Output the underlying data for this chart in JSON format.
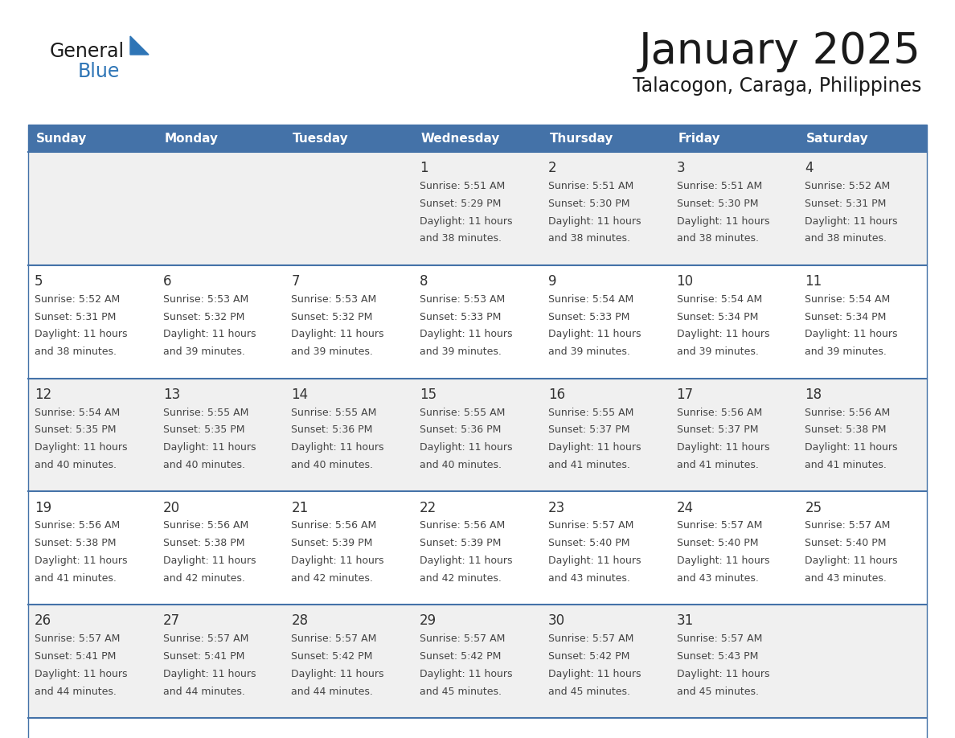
{
  "title": "January 2025",
  "subtitle": "Talacogon, Caraga, Philippines",
  "days_of_week": [
    "Sunday",
    "Monday",
    "Tuesday",
    "Wednesday",
    "Thursday",
    "Friday",
    "Saturday"
  ],
  "header_bg": "#4472a8",
  "header_text": "#ffffff",
  "cell_bg_light": "#f0f0f0",
  "cell_bg_white": "#ffffff",
  "row_line_color": "#4472a8",
  "text_color": "#333333",
  "title_color": "#1a1a1a",
  "subtitle_color": "#1a1a1a",
  "info_text_color": "#444444",
  "blue_color": "#2e75b6",
  "logo_general_color": "#1a1a1a",
  "calendar_data": [
    [
      null,
      null,
      null,
      {
        "day": 1,
        "sunrise": "5:51 AM",
        "sunset": "5:29 PM",
        "daylight": "11 hours",
        "daylight2": "and 38 minutes."
      },
      {
        "day": 2,
        "sunrise": "5:51 AM",
        "sunset": "5:30 PM",
        "daylight": "11 hours",
        "daylight2": "and 38 minutes."
      },
      {
        "day": 3,
        "sunrise": "5:51 AM",
        "sunset": "5:30 PM",
        "daylight": "11 hours",
        "daylight2": "and 38 minutes."
      },
      {
        "day": 4,
        "sunrise": "5:52 AM",
        "sunset": "5:31 PM",
        "daylight": "11 hours",
        "daylight2": "and 38 minutes."
      }
    ],
    [
      {
        "day": 5,
        "sunrise": "5:52 AM",
        "sunset": "5:31 PM",
        "daylight": "11 hours",
        "daylight2": "and 38 minutes."
      },
      {
        "day": 6,
        "sunrise": "5:53 AM",
        "sunset": "5:32 PM",
        "daylight": "11 hours",
        "daylight2": "and 39 minutes."
      },
      {
        "day": 7,
        "sunrise": "5:53 AM",
        "sunset": "5:32 PM",
        "daylight": "11 hours",
        "daylight2": "and 39 minutes."
      },
      {
        "day": 8,
        "sunrise": "5:53 AM",
        "sunset": "5:33 PM",
        "daylight": "11 hours",
        "daylight2": "and 39 minutes."
      },
      {
        "day": 9,
        "sunrise": "5:54 AM",
        "sunset": "5:33 PM",
        "daylight": "11 hours",
        "daylight2": "and 39 minutes."
      },
      {
        "day": 10,
        "sunrise": "5:54 AM",
        "sunset": "5:34 PM",
        "daylight": "11 hours",
        "daylight2": "and 39 minutes."
      },
      {
        "day": 11,
        "sunrise": "5:54 AM",
        "sunset": "5:34 PM",
        "daylight": "11 hours",
        "daylight2": "and 39 minutes."
      }
    ],
    [
      {
        "day": 12,
        "sunrise": "5:54 AM",
        "sunset": "5:35 PM",
        "daylight": "11 hours",
        "daylight2": "and 40 minutes."
      },
      {
        "day": 13,
        "sunrise": "5:55 AM",
        "sunset": "5:35 PM",
        "daylight": "11 hours",
        "daylight2": "and 40 minutes."
      },
      {
        "day": 14,
        "sunrise": "5:55 AM",
        "sunset": "5:36 PM",
        "daylight": "11 hours",
        "daylight2": "and 40 minutes."
      },
      {
        "day": 15,
        "sunrise": "5:55 AM",
        "sunset": "5:36 PM",
        "daylight": "11 hours",
        "daylight2": "and 40 minutes."
      },
      {
        "day": 16,
        "sunrise": "5:55 AM",
        "sunset": "5:37 PM",
        "daylight": "11 hours",
        "daylight2": "and 41 minutes."
      },
      {
        "day": 17,
        "sunrise": "5:56 AM",
        "sunset": "5:37 PM",
        "daylight": "11 hours",
        "daylight2": "and 41 minutes."
      },
      {
        "day": 18,
        "sunrise": "5:56 AM",
        "sunset": "5:38 PM",
        "daylight": "11 hours",
        "daylight2": "and 41 minutes."
      }
    ],
    [
      {
        "day": 19,
        "sunrise": "5:56 AM",
        "sunset": "5:38 PM",
        "daylight": "11 hours",
        "daylight2": "and 41 minutes."
      },
      {
        "day": 20,
        "sunrise": "5:56 AM",
        "sunset": "5:38 PM",
        "daylight": "11 hours",
        "daylight2": "and 42 minutes."
      },
      {
        "day": 21,
        "sunrise": "5:56 AM",
        "sunset": "5:39 PM",
        "daylight": "11 hours",
        "daylight2": "and 42 minutes."
      },
      {
        "day": 22,
        "sunrise": "5:56 AM",
        "sunset": "5:39 PM",
        "daylight": "11 hours",
        "daylight2": "and 42 minutes."
      },
      {
        "day": 23,
        "sunrise": "5:57 AM",
        "sunset": "5:40 PM",
        "daylight": "11 hours",
        "daylight2": "and 43 minutes."
      },
      {
        "day": 24,
        "sunrise": "5:57 AM",
        "sunset": "5:40 PM",
        "daylight": "11 hours",
        "daylight2": "and 43 minutes."
      },
      {
        "day": 25,
        "sunrise": "5:57 AM",
        "sunset": "5:40 PM",
        "daylight": "11 hours",
        "daylight2": "and 43 minutes."
      }
    ],
    [
      {
        "day": 26,
        "sunrise": "5:57 AM",
        "sunset": "5:41 PM",
        "daylight": "11 hours",
        "daylight2": "and 44 minutes."
      },
      {
        "day": 27,
        "sunrise": "5:57 AM",
        "sunset": "5:41 PM",
        "daylight": "11 hours",
        "daylight2": "and 44 minutes."
      },
      {
        "day": 28,
        "sunrise": "5:57 AM",
        "sunset": "5:42 PM",
        "daylight": "11 hours",
        "daylight2": "and 44 minutes."
      },
      {
        "day": 29,
        "sunrise": "5:57 AM",
        "sunset": "5:42 PM",
        "daylight": "11 hours",
        "daylight2": "and 45 minutes."
      },
      {
        "day": 30,
        "sunrise": "5:57 AM",
        "sunset": "5:42 PM",
        "daylight": "11 hours",
        "daylight2": "and 45 minutes."
      },
      {
        "day": 31,
        "sunrise": "5:57 AM",
        "sunset": "5:43 PM",
        "daylight": "11 hours",
        "daylight2": "and 45 minutes."
      },
      null
    ]
  ]
}
